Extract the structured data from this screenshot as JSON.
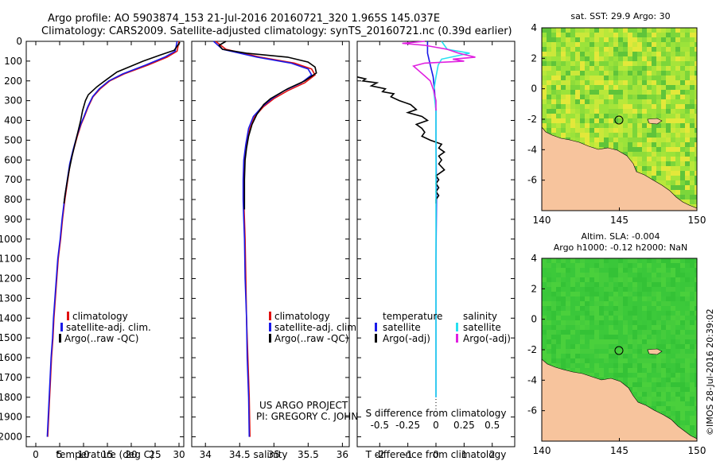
{
  "title": {
    "line1": "Argo profile: AO 5903874_153 21-Jul-2016 20160721_320 1.965S 145.037E",
    "line2": "Climatology: CARS2009. Satellite-adjusted climatology: synTS_20160721.nc (0.39d earlier)"
  },
  "credits": {
    "line1": "US ARGO PROJECT",
    "line2": "PI: GREGORY C. JOHNSON",
    "stamp": "©IMOS 28-Jul-2016 20:39:02"
  },
  "colors": {
    "climatology": "#e01010",
    "satellite": "#1a1ae8",
    "argo": "#000000",
    "satellite_salinity": "#27e0f0",
    "argo_salinity": "#e020e0",
    "land": "#f7c49d"
  },
  "chart_data": [
    {
      "id": "temperature",
      "type": "line",
      "xlabel": "temperature (deg C)",
      "ylabel": "",
      "xlim": [
        -2,
        31
      ],
      "ylim": [
        2050,
        0
      ],
      "xticks": [
        0,
        5,
        10,
        15,
        20,
        25,
        30
      ],
      "yticks": [
        0,
        100,
        200,
        300,
        400,
        500,
        600,
        700,
        800,
        900,
        1000,
        1100,
        1200,
        1300,
        1400,
        1500,
        1600,
        1700,
        1800,
        1900,
        2000
      ],
      "legend": [
        "climatology",
        "satellite-adj. clim.",
        "Argo(..raw -QC)"
      ],
      "legend_position": "lower-right",
      "series": [
        {
          "name": "climatology",
          "color": "#e01010",
          "points": [
            [
              30.0,
              0
            ],
            [
              29.6,
              50
            ],
            [
              27.5,
              80
            ],
            [
              23.5,
              120
            ],
            [
              18.5,
              165
            ],
            [
              15.5,
              200
            ],
            [
              13.5,
              240
            ],
            [
              12.0,
              280
            ],
            [
              11.0,
              330
            ],
            [
              10.2,
              380
            ],
            [
              9.5,
              420
            ],
            [
              8.7,
              480
            ],
            [
              7.9,
              550
            ],
            [
              7.2,
              620
            ],
            [
              6.7,
              700
            ],
            [
              6.1,
              800
            ],
            [
              5.6,
              900
            ],
            [
              5.2,
              1000
            ],
            [
              4.7,
              1100
            ],
            [
              4.4,
              1200
            ],
            [
              4.1,
              1300
            ],
            [
              3.8,
              1400
            ],
            [
              3.6,
              1500
            ],
            [
              3.3,
              1600
            ],
            [
              3.1,
              1700
            ],
            [
              2.9,
              1800
            ],
            [
              2.7,
              1900
            ],
            [
              2.5,
              2000
            ]
          ]
        },
        {
          "name": "satellite-adj. clim.",
          "color": "#1a1ae8",
          "points": [
            [
              29.6,
              0
            ],
            [
              29.2,
              50
            ],
            [
              27.0,
              80
            ],
            [
              23.0,
              120
            ],
            [
              18.2,
              165
            ],
            [
              15.3,
              200
            ],
            [
              13.3,
              240
            ],
            [
              11.9,
              280
            ],
            [
              10.9,
              330
            ],
            [
              10.1,
              380
            ],
            [
              9.4,
              420
            ],
            [
              8.6,
              480
            ],
            [
              7.8,
              550
            ],
            [
              7.1,
              620
            ],
            [
              6.6,
              700
            ],
            [
              6.0,
              800
            ],
            [
              5.5,
              900
            ],
            [
              5.1,
              1000
            ],
            [
              4.6,
              1100
            ],
            [
              4.3,
              1200
            ],
            [
              4.0,
              1300
            ],
            [
              3.7,
              1400
            ],
            [
              3.5,
              1500
            ],
            [
              3.2,
              1600
            ],
            [
              3.0,
              1700
            ],
            [
              2.8,
              1800
            ],
            [
              2.6,
              1900
            ],
            [
              2.4,
              2000
            ]
          ]
        },
        {
          "name": "Argo(..raw -QC)",
          "color": "#000000",
          "points": [
            [
              30.2,
              5
            ],
            [
              29.0,
              45
            ],
            [
              26.0,
              70
            ],
            [
              22.5,
              100
            ],
            [
              20.0,
              125
            ],
            [
              17.0,
              155
            ],
            [
              15.0,
              190
            ],
            [
              12.8,
              230
            ],
            [
              11.0,
              270
            ],
            [
              10.4,
              300
            ],
            [
              9.8,
              350
            ],
            [
              9.4,
              400
            ],
            [
              8.9,
              450
            ],
            [
              8.2,
              520
            ],
            [
              7.6,
              580
            ],
            [
              7.0,
              650
            ],
            [
              6.5,
              720
            ],
            [
              6.1,
              780
            ],
            [
              5.9,
              820
            ]
          ]
        }
      ]
    },
    {
      "id": "salinity",
      "type": "line",
      "xlabel": "salinity",
      "xlim": [
        33.8,
        36.1
      ],
      "ylim": [
        2050,
        0
      ],
      "xticks": [
        34,
        34.5,
        35,
        35.5,
        36
      ],
      "legend": [
        "climatology",
        "satellite-adj. clim.",
        "Argo(..raw -QC)"
      ],
      "legend_position": "lower-right",
      "series": [
        {
          "name": "climatology",
          "color": "#e01010",
          "points": [
            [
              34.15,
              0
            ],
            [
              34.3,
              40
            ],
            [
              34.8,
              80
            ],
            [
              35.3,
              110
            ],
            [
              35.55,
              140
            ],
            [
              35.6,
              170
            ],
            [
              35.45,
              210
            ],
            [
              35.2,
              250
            ],
            [
              35.0,
              290
            ],
            [
              34.85,
              330
            ],
            [
              34.72,
              380
            ],
            [
              34.65,
              440
            ],
            [
              34.6,
              520
            ],
            [
              34.57,
              600
            ],
            [
              34.56,
              700
            ],
            [
              34.56,
              800
            ],
            [
              34.57,
              900
            ],
            [
              34.58,
              1000
            ],
            [
              34.59,
              1200
            ],
            [
              34.6,
              1400
            ],
            [
              34.62,
              1600
            ],
            [
              34.64,
              1800
            ],
            [
              34.65,
              2000
            ]
          ]
        },
        {
          "name": "satellite-adj. clim.",
          "color": "#1a1ae8",
          "points": [
            [
              34.12,
              0
            ],
            [
              34.25,
              40
            ],
            [
              34.75,
              80
            ],
            [
              35.25,
              110
            ],
            [
              35.5,
              140
            ],
            [
              35.55,
              170
            ],
            [
              35.4,
              210
            ],
            [
              35.15,
              250
            ],
            [
              34.97,
              290
            ],
            [
              34.83,
              330
            ],
            [
              34.7,
              380
            ],
            [
              34.63,
              440
            ],
            [
              34.59,
              520
            ],
            [
              34.56,
              600
            ],
            [
              34.55,
              700
            ],
            [
              34.55,
              800
            ],
            [
              34.56,
              900
            ],
            [
              34.57,
              1000
            ],
            [
              34.58,
              1200
            ],
            [
              34.6,
              1400
            ],
            [
              34.61,
              1600
            ],
            [
              34.63,
              1800
            ],
            [
              34.64,
              2000
            ]
          ]
        },
        {
          "name": "Argo(..raw -QC)",
          "color": "#000000",
          "points": [
            [
              34.3,
              0
            ],
            [
              34.2,
              20
            ],
            [
              34.25,
              40
            ],
            [
              34.6,
              60
            ],
            [
              35.2,
              80
            ],
            [
              35.5,
              105
            ],
            [
              35.6,
              130
            ],
            [
              35.62,
              160
            ],
            [
              35.45,
              200
            ],
            [
              35.2,
              240
            ],
            [
              34.95,
              290
            ],
            [
              34.85,
              320
            ],
            [
              34.75,
              370
            ],
            [
              34.68,
              420
            ],
            [
              34.63,
              480
            ],
            [
              34.6,
              540
            ],
            [
              34.58,
              600
            ],
            [
              34.57,
              700
            ],
            [
              34.57,
              800
            ],
            [
              34.57,
              850
            ]
          ]
        }
      ]
    },
    {
      "id": "differences",
      "type": "line",
      "xlabel": "T difference from climatology",
      "xlabel_top": "S difference from climatology",
      "xlim": [
        -2.8,
        2.8
      ],
      "ylim": [
        2050,
        0
      ],
      "xticks": [
        -2,
        -1,
        0,
        1,
        2
      ],
      "xticks_s": [
        -0.5,
        -0.25,
        0,
        0.25,
        0.5
      ],
      "xticklabels_s": [
        "-0.5",
        "-0.25",
        "0",
        "0.25",
        "0.5"
      ],
      "legend_temperature": {
        "title": "temperature",
        "items": [
          "satellite",
          "Argo(-adj)"
        ]
      },
      "legend_salinity": {
        "title": "salinity",
        "items": [
          "satellite",
          "Argo(-adj)"
        ]
      },
      "series": [
        {
          "name": "temperature satellite",
          "color": "#1a1ae8",
          "points": [
            [
              -0.3,
              0
            ],
            [
              -0.3,
              60
            ],
            [
              -0.2,
              120
            ],
            [
              -0.1,
              180
            ],
            [
              -0.05,
              250
            ],
            [
              0,
              350
            ],
            [
              0,
              500
            ],
            [
              0.02,
              800
            ],
            [
              0,
              1100
            ],
            [
              0,
              1500
            ],
            [
              0,
              1800
            ]
          ]
        },
        {
          "name": "temperature Argo(-adj)",
          "color": "#000000",
          "points": [
            [
              -2.8,
              180
            ],
            [
              -2.5,
              190
            ],
            [
              -2.6,
              200
            ],
            [
              -2.1,
              210
            ],
            [
              -2.3,
              225
            ],
            [
              -1.8,
              240
            ],
            [
              -1.9,
              255
            ],
            [
              -1.5,
              265
            ],
            [
              -1.6,
              280
            ],
            [
              -1.3,
              300
            ],
            [
              -0.9,
              320
            ],
            [
              -0.7,
              345
            ],
            [
              -1.0,
              360
            ],
            [
              -0.5,
              380
            ],
            [
              -0.3,
              400
            ],
            [
              -0.7,
              420
            ],
            [
              -0.5,
              440
            ],
            [
              -0.4,
              460
            ],
            [
              -0.5,
              480
            ],
            [
              -0.2,
              500
            ],
            [
              0.2,
              520
            ],
            [
              0.1,
              540
            ],
            [
              0.3,
              560
            ],
            [
              0.1,
              580
            ],
            [
              0.2,
              600
            ],
            [
              0.1,
              620
            ],
            [
              0.3,
              650
            ],
            [
              0.0,
              680
            ],
            [
              0.1,
              700
            ],
            [
              0.0,
              720
            ],
            [
              0.1,
              740
            ],
            [
              0.0,
              760
            ],
            [
              0.1,
              780
            ],
            [
              0.0,
              800
            ],
            [
              0.0,
              820
            ]
          ]
        },
        {
          "name": "salinity satellite",
          "color": "#27e0f0",
          "points": [
            [
              0.05,
              0
            ],
            [
              0.1,
              40
            ],
            [
              0.3,
              60
            ],
            [
              0.05,
              90
            ],
            [
              0.02,
              120
            ],
            [
              0.0,
              180
            ],
            [
              -0.02,
              250
            ],
            [
              0.0,
              350
            ],
            [
              0.0,
              500
            ],
            [
              0.0,
              800
            ],
            [
              0.0,
              1100
            ],
            [
              0.0,
              1500
            ],
            [
              0.0,
              1800
            ]
          ]
        },
        {
          "name": "salinity Argo(-adj)",
          "color": "#e020e0",
          "points": [
            [
              -0.1,
              0
            ],
            [
              -0.3,
              10
            ],
            [
              -0.1,
              20
            ],
            [
              0.1,
              40
            ],
            [
              0.2,
              60
            ],
            [
              0.35,
              80
            ],
            [
              0.15,
              90
            ],
            [
              0.25,
              100
            ],
            [
              -0.1,
              110
            ],
            [
              -0.2,
              125
            ],
            [
              -0.15,
              150
            ],
            [
              -0.1,
              175
            ],
            [
              -0.05,
              200
            ],
            [
              -0.02,
              250
            ],
            [
              0.0,
              300
            ],
            [
              0.0,
              350
            ]
          ]
        }
      ]
    }
  ],
  "maps": {
    "sst": {
      "title": "sat. SST: 29.9 Argo: 30",
      "xticks": [
        140,
        145,
        150
      ],
      "yticks": [
        4,
        2,
        0,
        -2,
        -4,
        -6
      ],
      "xlim": [
        140,
        150
      ],
      "ylim": [
        -8,
        4
      ],
      "marker": {
        "lon": 145.037,
        "lat": -1.965
      }
    },
    "sla": {
      "title_line1": "Altim. SLA: -0.004",
      "title_line2": "Argo h1000: -0.12 h2000: NaN",
      "xticks": [
        140,
        145,
        150
      ],
      "yticks": [
        4,
        2,
        0,
        -2,
        -4,
        -6
      ],
      "xlim": [
        140,
        150
      ],
      "ylim": [
        -8,
        4
      ],
      "marker": {
        "lon": 145.037,
        "lat": -1.965
      }
    }
  }
}
